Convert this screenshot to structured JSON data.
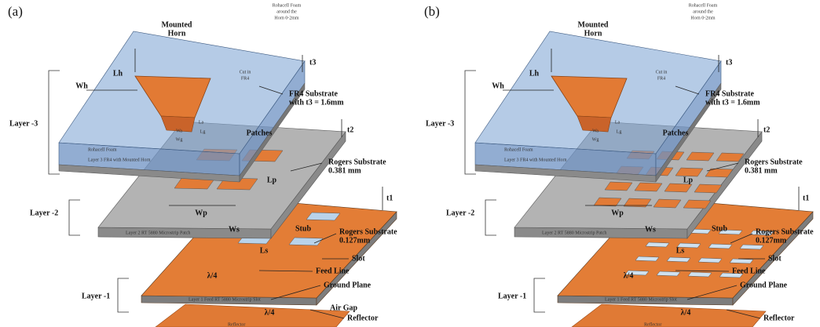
{
  "panels": [
    {
      "label": "(a)",
      "horn": [
        "Mounted",
        "Horn"
      ],
      "foam": [
        "Rohacell Foam",
        "around the",
        "Horn 0-2mm"
      ],
      "lh": "Lh",
      "wh": "Wh",
      "cut": [
        "Cut in",
        "FR4"
      ],
      "t3": "t3",
      "fr4": [
        "FR4 Substrate",
        "with t3 = 1.6mm"
      ],
      "layer3": "Layer -3",
      "foam_side": "Rohacell Foam",
      "layer3_name": "Layer 3 FR4 with Mounted Horn",
      "wa": "Wa",
      "wg": "Wg",
      "la": "La",
      "lg": "Lg",
      "patches": "Patches",
      "t2": "t2",
      "rogers2": [
        "Rogers Substrate",
        "0.381 mm"
      ],
      "lp": "Lp",
      "wp": "Wp",
      "layer2": "Layer -2",
      "layer2_name": "Layer 2 RT 5880 Microstrip Patch",
      "t1": "t1",
      "rogers1": [
        "Rogers Substrate",
        "0.127mm"
      ],
      "stub": "Stub",
      "ws": "Ws",
      "ls": "Ls",
      "slot": "Slot",
      "feed": "Feed Line",
      "lambda_feed": "λ/4",
      "ground": "Ground Plane",
      "layer1": "Layer -1",
      "layer1_name": "Layer 1 Feed RT 5880 Microstrip Slot",
      "air": "Air Gap",
      "lambda_gap": "λ/4",
      "reflector": "Reflector",
      "reflector_name": "Reflector"
    },
    {
      "label": "(b)",
      "horn": [
        "Mounted",
        "Horn"
      ],
      "foam": [
        "Rohacell Foam",
        "around the",
        "Horn 0-2mm"
      ],
      "lh": "Lh",
      "wh": "Wh",
      "cut": [
        "Cut in",
        "FR4"
      ],
      "t3": "t3",
      "fr4": [
        "FR4 Substrate",
        "with t3 = 1.6mm"
      ],
      "layer3": "Layer -3",
      "foam_side": "Rohacell Foam",
      "layer3_name": "Layer 3 FR4 with Mounted Horn",
      "wa": "Wa",
      "wg": "Wg",
      "la": "La",
      "lg": "Lg",
      "patches": "Patches",
      "t2": "t2",
      "rogers2": [
        "Rogers Substrate",
        "0.381 mm"
      ],
      "lp": "Lp",
      "wp": "Wp",
      "layer2": "Layer -2",
      "layer2_name": "Layer 2 RT 5880 Microstrip Patch",
      "t1": "t1",
      "rogers1": [
        "Rogers Substrate",
        "0.127mm"
      ],
      "stub": "Stub",
      "ws": "Ws",
      "ls": "Ls",
      "slot": "Slot",
      "feed": "Feed Line",
      "lambda_feed": "λ/4",
      "ground": "Ground Plane",
      "layer1": "Layer -1",
      "layer1_name": "Layer 1 Feed RT 5880 Microstrip Slot",
      "lambda_gap": "λ/4",
      "reflector": "Reflector",
      "reflector_name": "Reflector"
    }
  ]
}
